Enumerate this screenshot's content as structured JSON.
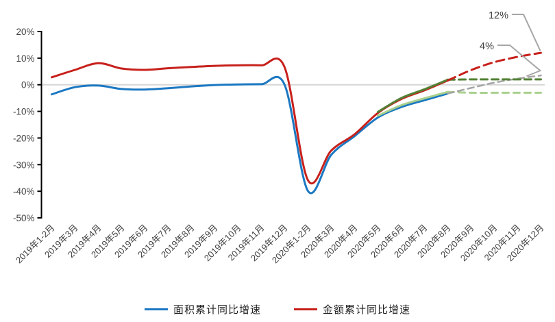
{
  "chart_data": {
    "type": "line",
    "title": "",
    "categories": [
      "2019年1-2月",
      "2019年3月",
      "2019年4月",
      "2019年5月",
      "2019年6月",
      "2019年7月",
      "2019年8月",
      "2019年9月",
      "2019年10月",
      "2019年11月",
      "2019年12月",
      "2020年1-2月",
      "2020年3月",
      "2020年4月",
      "2020年5月",
      "2020年6月",
      "2020年7月",
      "2020年8月",
      "2020年9月",
      "2020年10月",
      "2020年11月",
      "2020年12月"
    ],
    "ylim": [
      -50,
      20
    ],
    "ytick_values": [
      20,
      10,
      0,
      -10,
      -20,
      -30,
      -40,
      -50
    ],
    "ytick_labels": [
      "20%",
      "10%",
      "0%",
      "-10%",
      "-20%",
      "-30%",
      "-40%",
      "-50%"
    ],
    "grid": "zero-line-only",
    "legend_position": "bottom",
    "series": [
      {
        "id": "area-actual",
        "legend_label": "面积累计同比增速",
        "color": "#1B78C2",
        "style": "solid",
        "width": 3,
        "start_index": 0,
        "values": [
          -3.6,
          -0.9,
          -0.3,
          -1.6,
          -1.8,
          -1.3,
          -0.6,
          -0.1,
          0.1,
          0.2,
          -0.1,
          -39.9,
          -26.3,
          -19.3,
          -12.3,
          -8.4,
          -5.8,
          -3.3
        ]
      },
      {
        "id": "amount-actual",
        "legend_label": "金额累计同比增速",
        "color": "#C7201B",
        "style": "solid",
        "width": 3,
        "start_index": 0,
        "values": [
          2.8,
          5.6,
          8.1,
          6.1,
          5.6,
          6.2,
          6.7,
          7.1,
          7.3,
          7.3,
          6.5,
          -35.9,
          -24.7,
          -18.6,
          -10.6,
          -5.4,
          -2.1,
          1.6
        ]
      },
      {
        "id": "area-scenario-history",
        "color": "#A9D18E",
        "style": "solid",
        "width": 3,
        "start_index": 14,
        "values": [
          -11.6,
          -7.7,
          -5.1,
          -2.7
        ]
      },
      {
        "id": "amount-scenario-history",
        "color": "#538135",
        "style": "solid",
        "width": 3,
        "start_index": 14,
        "values": [
          -10.2,
          -5.0,
          -1.7,
          1.9
        ]
      },
      {
        "id": "area-forecast-low",
        "color": "#A9D18E",
        "style": "dashed",
        "dash": "9 7",
        "width": 3,
        "start_index": 17,
        "values": [
          -2.7,
          -3,
          -3,
          -3,
          -3
        ]
      },
      {
        "id": "area-forecast-high",
        "color": "#A6A6A6",
        "style": "dashed",
        "dash": "9 6",
        "width": 2.6,
        "start_index": 17,
        "values": [
          -3.3,
          -1.2,
          0.8,
          2.3,
          3.5
        ]
      },
      {
        "id": "amount-forecast-low",
        "color": "#538135",
        "style": "dashed",
        "dash": "10 6",
        "width": 3,
        "start_index": 17,
        "values": [
          1.9,
          2,
          2,
          2,
          2
        ]
      },
      {
        "id": "amount-forecast-high",
        "color": "#C7201B",
        "style": "dashed",
        "dash": "12 7",
        "width": 3,
        "start_index": 17,
        "values": [
          1.6,
          5.5,
          8.5,
          10.5,
          12
        ]
      }
    ],
    "annotations": [
      {
        "text": "12%",
        "series_id": "amount-forecast-high"
      },
      {
        "text": "4%",
        "series_id": "area-forecast-high"
      }
    ],
    "legend": {
      "items": [
        {
          "label": "面积累计同比增速",
          "color": "#1B78C2"
        },
        {
          "label": "金额累计同比增速",
          "color": "#C7201B"
        }
      ]
    }
  },
  "colors": {
    "axis": "#000000",
    "tick_label": "#404040",
    "zero_line": "#D6D6D6",
    "annotation_text": "#404040",
    "leader": "#A6A6A6"
  }
}
